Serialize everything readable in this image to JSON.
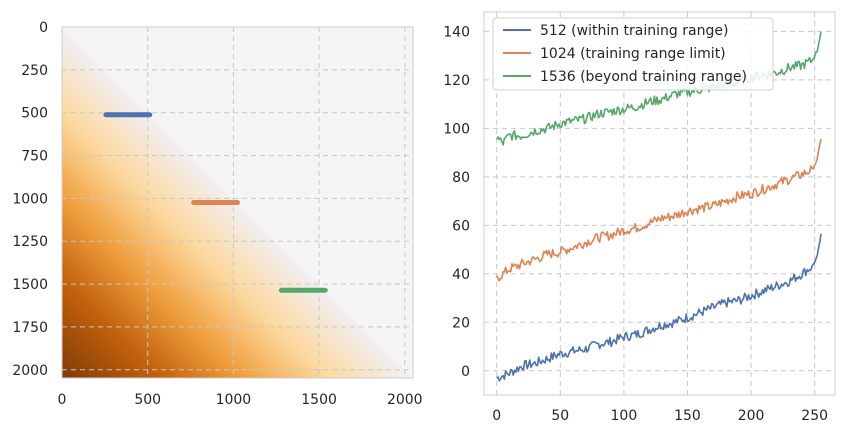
{
  "chart_data": [
    {
      "type": "heatmap",
      "title": "",
      "xlabel": "",
      "ylabel": "",
      "xlim": [
        0,
        2048
      ],
      "ylim": [
        2048,
        0
      ],
      "xticks": [
        "0",
        "500",
        "1000",
        "1500",
        "2000"
      ],
      "yticks": [
        "0",
        "250",
        "500",
        "750",
        "1000",
        "1250",
        "1500",
        "1750",
        "2000"
      ],
      "grid": true,
      "mask": "lower-triangular (key position <= query position)",
      "colormap": [
        "#7f3b08",
        "#e08214",
        "#fdb863",
        "#f7f7f7",
        "#b2abd2",
        "#542788"
      ],
      "segments": [
        {
          "name": "512",
          "row": 512,
          "x_start": 256,
          "x_end": 512,
          "color": "#4c72b0"
        },
        {
          "name": "1024",
          "row": 1024,
          "x_start": 768,
          "x_end": 1024,
          "color": "#dd8452"
        },
        {
          "name": "1536",
          "row": 1536,
          "x_start": 1280,
          "x_end": 1536,
          "color": "#55a868"
        }
      ]
    },
    {
      "type": "line",
      "title": "",
      "xlabel": "",
      "ylabel": "",
      "xlim": [
        -10,
        266
      ],
      "ylim": [
        -10,
        148
      ],
      "xticks": [
        0,
        50,
        100,
        150,
        200,
        250
      ],
      "yticks": [
        0,
        20,
        40,
        60,
        80,
        100,
        120,
        140
      ],
      "grid": true,
      "legend_position": "top-left",
      "series": [
        {
          "name": "512 (within training range)",
          "color": "#4c72b0",
          "points": [
            [
              0,
              -3
            ],
            [
              10,
              -1
            ],
            [
              20,
              2
            ],
            [
              30,
              3
            ],
            [
              40,
              5
            ],
            [
              50,
              7
            ],
            [
              60,
              8
            ],
            [
              70,
              9
            ],
            [
              80,
              11
            ],
            [
              90,
              12
            ],
            [
              100,
              14
            ],
            [
              110,
              15
            ],
            [
              120,
              17
            ],
            [
              130,
              19
            ],
            [
              140,
              20
            ],
            [
              150,
              22
            ],
            [
              160,
              24
            ],
            [
              170,
              26
            ],
            [
              180,
              28
            ],
            [
              190,
              29
            ],
            [
              200,
              31
            ],
            [
              210,
              33
            ],
            [
              220,
              35
            ],
            [
              230,
              37
            ],
            [
              240,
              40
            ],
            [
              248,
              43
            ],
            [
              252,
              47
            ],
            [
              255,
              56
            ]
          ]
        },
        {
          "name": "1024 (training range limit)",
          "color": "#dd8452",
          "points": [
            [
              0,
              38
            ],
            [
              10,
              42
            ],
            [
              20,
              44
            ],
            [
              30,
              46
            ],
            [
              40,
              48
            ],
            [
              50,
              49
            ],
            [
              60,
              51
            ],
            [
              70,
              53
            ],
            [
              80,
              55
            ],
            [
              90,
              56
            ],
            [
              100,
              58
            ],
            [
              110,
              59
            ],
            [
              120,
              61
            ],
            [
              130,
              63
            ],
            [
              140,
              64
            ],
            [
              150,
              66
            ],
            [
              160,
              67
            ],
            [
              170,
              68
            ],
            [
              180,
              70
            ],
            [
              190,
              72
            ],
            [
              200,
              73
            ],
            [
              210,
              75
            ],
            [
              220,
              77
            ],
            [
              230,
              79
            ],
            [
              240,
              81
            ],
            [
              248,
              83
            ],
            [
              252,
              87
            ],
            [
              255,
              96
            ]
          ]
        },
        {
          "name": "1536 (beyond training range)",
          "color": "#55a868",
          "points": [
            [
              0,
              96
            ],
            [
              5,
              94
            ],
            [
              10,
              97
            ],
            [
              20,
              97
            ],
            [
              30,
              99
            ],
            [
              40,
              100
            ],
            [
              50,
              102
            ],
            [
              60,
              103
            ],
            [
              70,
              104
            ],
            [
              80,
              106
            ],
            [
              90,
              107
            ],
            [
              100,
              108
            ],
            [
              110,
              109
            ],
            [
              120,
              111
            ],
            [
              130,
              112
            ],
            [
              140,
              114
            ],
            [
              150,
              115
            ],
            [
              160,
              116
            ],
            [
              170,
              117
            ],
            [
              180,
              118
            ],
            [
              190,
              119
            ],
            [
              200,
              121
            ],
            [
              210,
              122
            ],
            [
              220,
              123
            ],
            [
              230,
              125
            ],
            [
              240,
              126
            ],
            [
              248,
              128
            ],
            [
              252,
              132
            ],
            [
              255,
              140
            ]
          ]
        }
      ]
    }
  ]
}
